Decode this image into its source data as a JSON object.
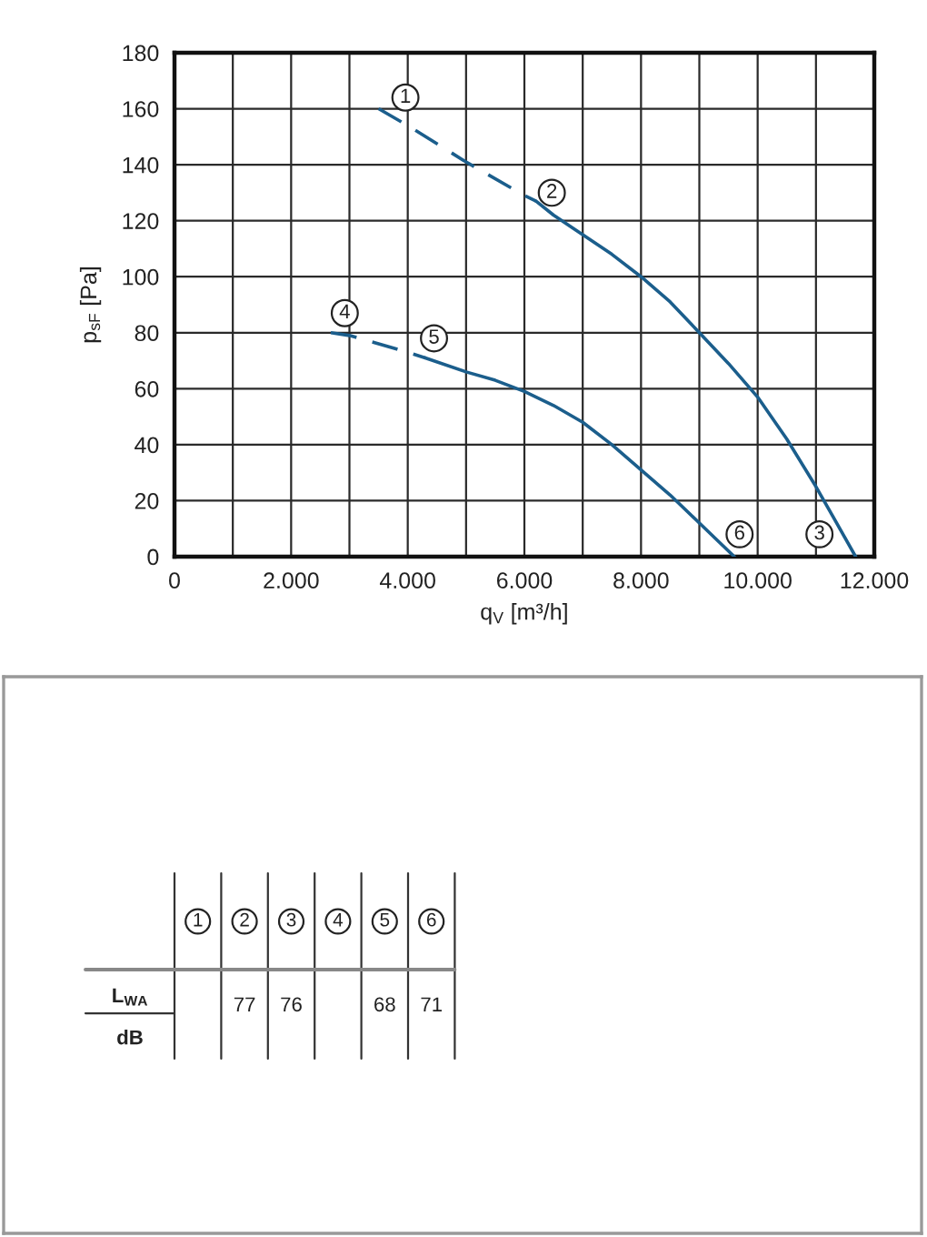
{
  "chart_data": [
    {
      "type": "line",
      "xlabel": "q$_{V}$ [m³/h]",
      "ylabel": "p$_{sF}$ [Pa]",
      "xlim": [
        0,
        12000
      ],
      "ylim": [
        0,
        180
      ],
      "xticks": [
        0,
        {
          "value": 1000,
          "label": null
        },
        {
          "value": 2000,
          "label": "2.000"
        },
        {
          "value": 3000,
          "label": null
        },
        {
          "value": 4000,
          "label": "4.000"
        },
        {
          "value": 5000,
          "label": null
        },
        {
          "value": 6000,
          "label": "6.000"
        },
        {
          "value": 7000,
          "label": null
        },
        {
          "value": 8000,
          "label": "8.000"
        },
        {
          "value": 9000,
          "label": null
        },
        {
          "value": 10000,
          "label": "10.000"
        },
        {
          "value": 11000,
          "label": null
        },
        {
          "value": 12000,
          "label": "12.000"
        }
      ],
      "yticks": [
        0,
        20,
        40,
        60,
        80,
        100,
        120,
        140,
        160,
        180
      ],
      "grid": true,
      "series": [
        {
          "color": "#1b5e8c",
          "line_style": "dashed",
          "x": [
            3500,
            4000,
            5000,
            6000,
            6200
          ],
          "values": [
            160,
            154,
            141,
            129,
            127
          ]
        },
        {
          "color": "#1b5e8c",
          "line_style": "solid",
          "x": [
            6200,
            6500,
            7000,
            7500,
            8000,
            8500,
            9000,
            9500,
            10000,
            10500,
            11000,
            11300,
            11680
          ],
          "values": [
            127,
            122,
            115,
            108,
            100,
            91,
            80,
            69,
            57,
            42,
            25,
            14,
            0
          ]
        },
        {
          "color": "#1b5e8c",
          "line_style": "dashed",
          "x": [
            2680,
            3000,
            3500,
            4000,
            4300
          ],
          "values": [
            80,
            79,
            76,
            73,
            71
          ]
        },
        {
          "color": "#1b5e8c",
          "line_style": "solid",
          "x": [
            4300,
            5000,
            5500,
            6000,
            6500,
            7000,
            7500,
            8000,
            8500,
            9000,
            9600
          ],
          "values": [
            71,
            66,
            63,
            59,
            54,
            48,
            40,
            31,
            22,
            12,
            0
          ]
        }
      ],
      "annotations": [
        {
          "text": "1",
          "x": 3960,
          "y": 164
        },
        {
          "text": "2",
          "x": 6470,
          "y": 130
        },
        {
          "text": "3",
          "x": 11060,
          "y": 8
        },
        {
          "text": "4",
          "x": 2920,
          "y": 87
        },
        {
          "text": "5",
          "x": 4450,
          "y": 78
        },
        {
          "text": "6",
          "x": 9690,
          "y": 8
        }
      ]
    },
    {
      "type": "heatmap",
      "categories": [
        "1",
        "2",
        "3",
        "4",
        "5",
        "6"
      ],
      "y_categories": [
        "L$_{WA}$"
      ],
      "ylabel": "dB",
      "cells": [
        [
          null,
          77,
          76,
          null,
          68,
          71
        ]
      ],
      "data_labels": true
    }
  ]
}
